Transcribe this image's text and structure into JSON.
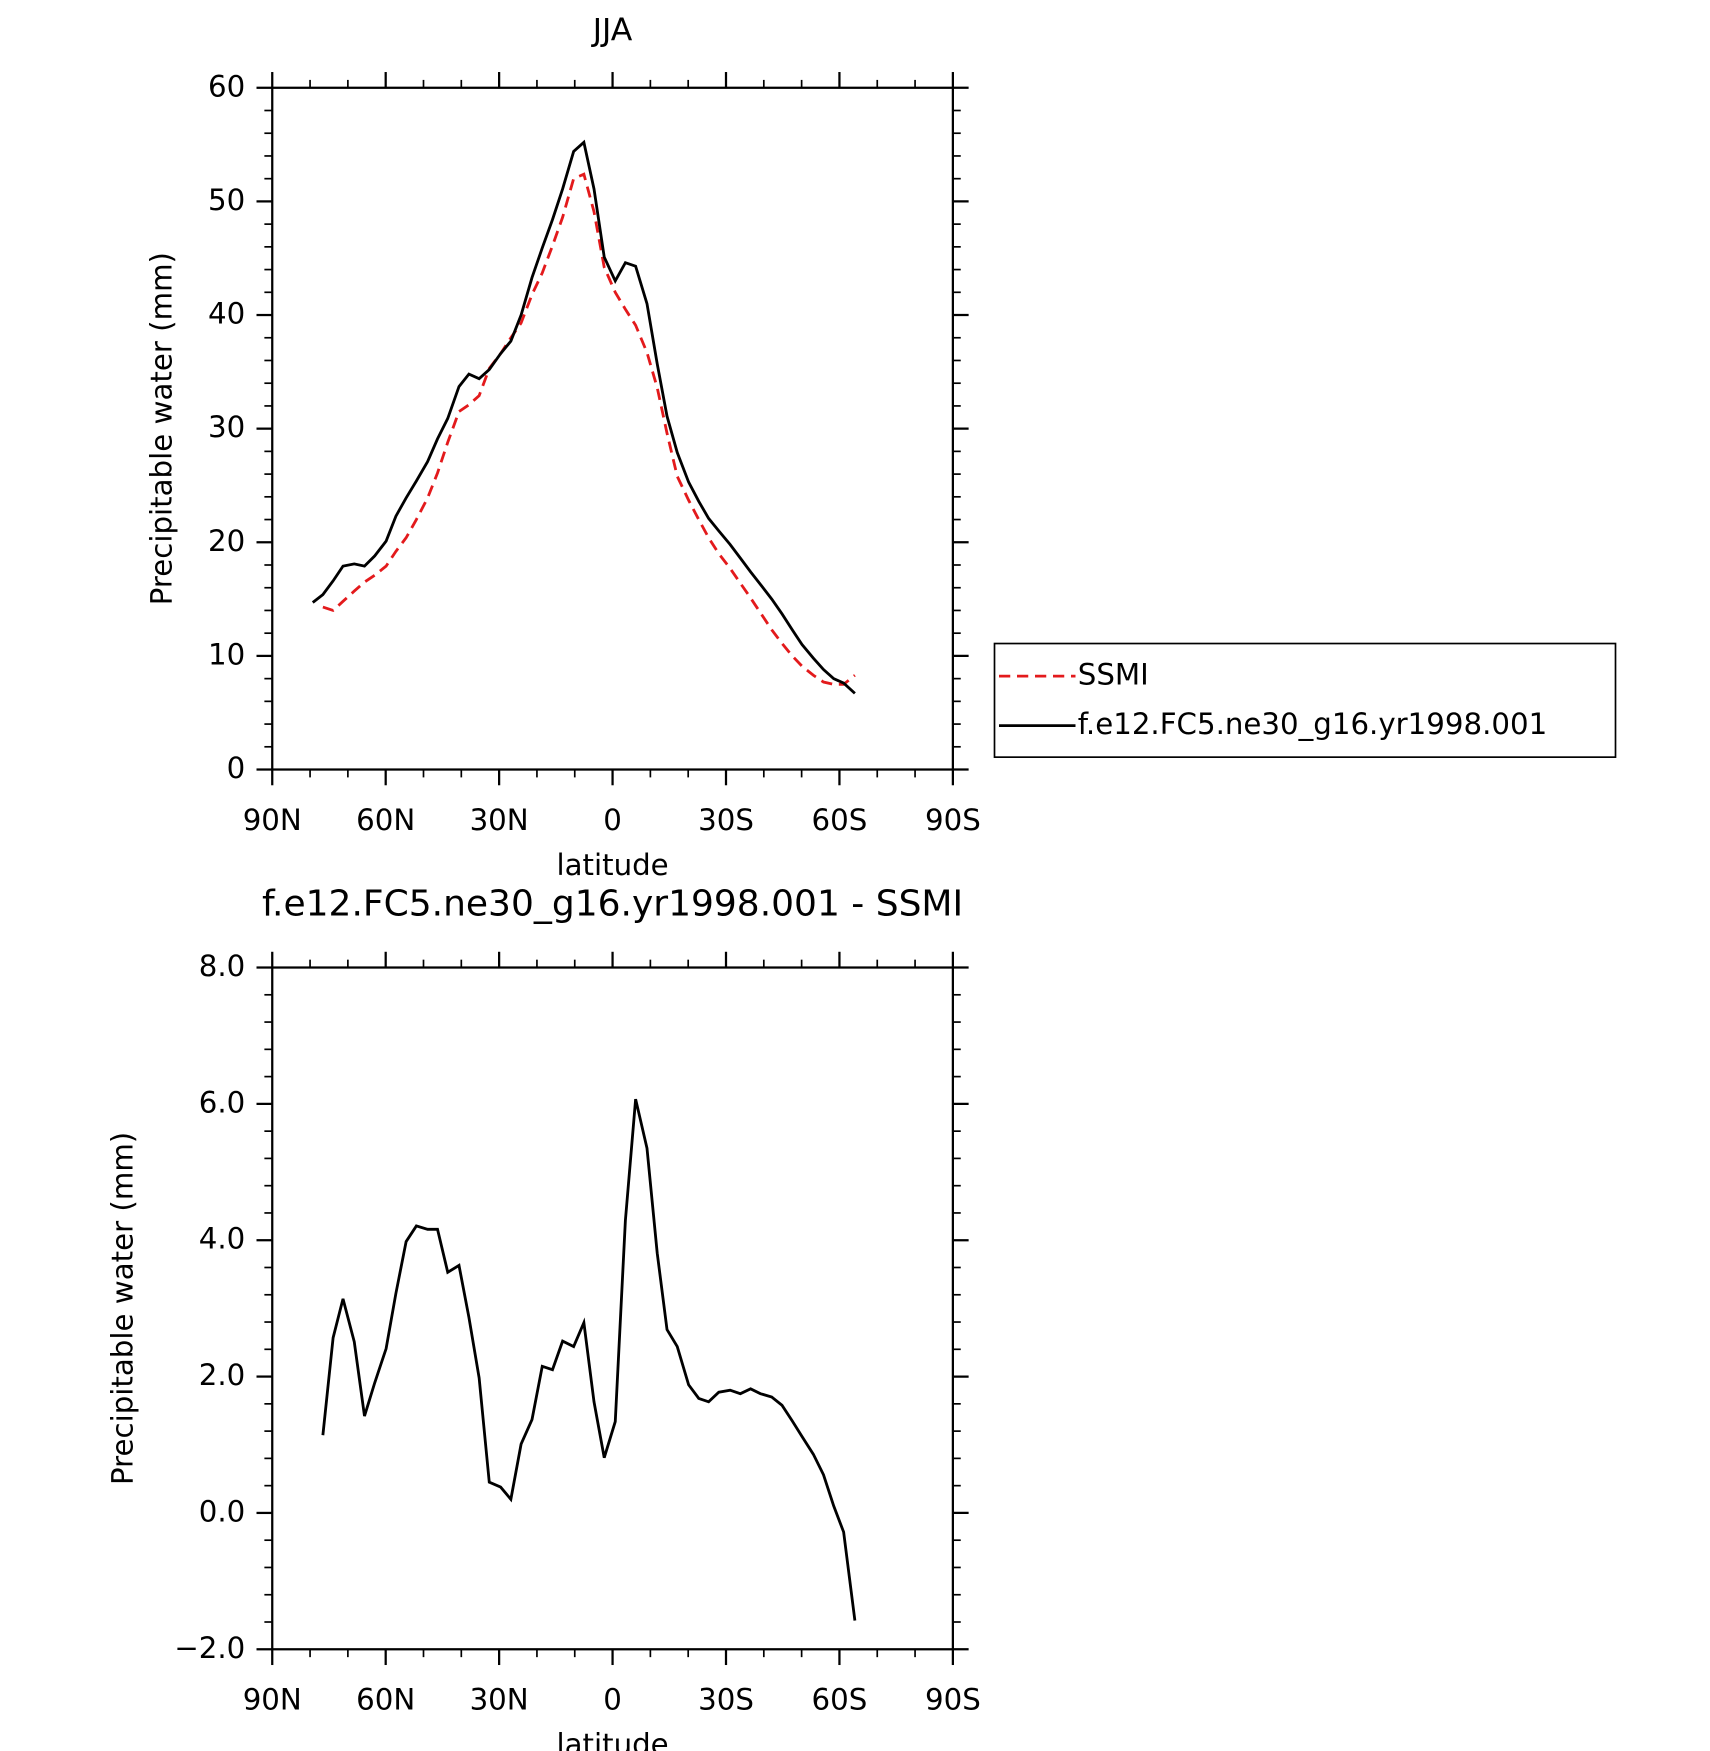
{
  "chart_data": [
    {
      "type": "line",
      "title": "JJA",
      "xlabel": "latitude",
      "ylabel": "Precipitable water (mm)",
      "x": [
        79.3,
        76.6,
        73.9,
        71.3,
        68.3,
        65.6,
        62.9,
        59.9,
        57.3,
        54.6,
        51.9,
        48.9,
        46.3,
        43.6,
        40.6,
        38.0,
        35.3,
        32.6,
        29.6,
        26.9,
        24.2,
        21.3,
        18.6,
        15.9,
        13.2,
        10.3,
        7.6,
        4.9,
        2.2,
        -0.7,
        -3.4,
        -6.1,
        -9.1,
        -11.8,
        -14.4,
        -17.1,
        -20.1,
        -22.8,
        -25.4,
        -28.1,
        -31.1,
        -33.8,
        -36.5,
        -39.1,
        -42.1,
        -44.8,
        -47.5,
        -50.1,
        -53.1,
        -55.8,
        -58.5,
        -61.1,
        -64.1
      ],
      "series": [
        {
          "name": "SSMI",
          "color": "#e31a1c",
          "line_style": "dashed",
          "values": [
            null,
            14.3,
            14.0,
            14.8,
            15.7,
            16.5,
            17.1,
            17.9,
            19.2,
            20.4,
            22.0,
            23.9,
            26.1,
            28.8,
            31.5,
            32.1,
            32.9,
            35.3,
            36.6,
            38.0,
            39.3,
            41.8,
            43.7,
            46.1,
            48.6,
            52.0,
            52.4,
            49.1,
            44.2,
            42.0,
            40.5,
            39.1,
            36.7,
            33.6,
            29.6,
            25.8,
            23.7,
            22.0,
            20.4,
            19.0,
            17.7,
            16.4,
            15.1,
            13.8,
            12.3,
            11.1,
            10.0,
            9.1,
            8.3,
            7.7,
            7.5,
            7.5,
            8.3
          ]
        },
        {
          "name": "f.e12.FC5.ne30_g16.yr1998.001",
          "color": "#000000",
          "line_style": "solid",
          "values": [
            14.7,
            15.4,
            16.6,
            17.9,
            18.1,
            17.9,
            18.8,
            20.1,
            22.3,
            23.9,
            25.4,
            27.1,
            29.1,
            30.9,
            33.7,
            34.8,
            34.4,
            35.2,
            36.6,
            37.7,
            40.0,
            43.3,
            45.9,
            48.4,
            51.1,
            54.4,
            55.2,
            51.1,
            45.1,
            43.0,
            44.6,
            44.3,
            41.0,
            35.7,
            31.1,
            27.9,
            25.3,
            23.6,
            22.1,
            21.0,
            19.8,
            18.6,
            17.4,
            16.3,
            15.0,
            13.7,
            12.3,
            11.0,
            9.8,
            8.8,
            8.0,
            7.6,
            6.7
          ]
        }
      ],
      "xlim": [
        90,
        -90
      ],
      "xticks": [
        {
          "value": 90,
          "label": "90N"
        },
        {
          "value": 60,
          "label": "60N"
        },
        {
          "value": 30,
          "label": "30N"
        },
        0,
        {
          "value": -30,
          "label": "30S"
        },
        {
          "value": -60,
          "label": "60S"
        },
        {
          "value": -90,
          "label": "90S"
        }
      ],
      "ylim": [
        0,
        60
      ],
      "yticks": [
        0,
        10,
        20,
        30,
        40,
        50,
        60
      ],
      "legend": "right"
    },
    {
      "type": "line",
      "title": "f.e12.FC5.ne30_g16.yr1998.001 - SSMI",
      "xlabel": "latitude",
      "ylabel": "Precipitable water (mm)",
      "x": [
        76.6,
        73.9,
        71.3,
        68.3,
        65.6,
        62.9,
        59.9,
        57.3,
        54.6,
        51.9,
        48.9,
        46.3,
        43.6,
        40.6,
        38.0,
        35.3,
        32.6,
        29.6,
        26.9,
        24.2,
        21.3,
        18.6,
        15.9,
        13.2,
        10.3,
        7.6,
        4.9,
        2.2,
        -0.7,
        -3.4,
        -6.1,
        -9.1,
        -11.8,
        -14.4,
        -17.1,
        -20.1,
        -22.8,
        -25.4,
        -28.1,
        -31.1,
        -33.8,
        -36.5,
        -39.1,
        -42.1,
        -44.8,
        -47.5,
        -50.1,
        -53.1,
        -55.8,
        -58.5,
        -61.1,
        -64.1
      ],
      "color": "#000000",
      "values": [
        1.14,
        2.57,
        3.14,
        2.51,
        1.42,
        1.91,
        2.41,
        3.22,
        3.98,
        4.21,
        4.16,
        4.16,
        3.53,
        3.63,
        2.87,
        1.98,
        0.45,
        0.38,
        0.2,
        1.01,
        1.37,
        2.15,
        2.1,
        2.52,
        2.44,
        2.79,
        1.63,
        0.81,
        1.34,
        4.29,
        6.07,
        5.35,
        3.81,
        2.69,
        2.44,
        1.88,
        1.68,
        1.63,
        1.77,
        1.8,
        1.75,
        1.82,
        1.75,
        1.7,
        1.58,
        1.35,
        1.12,
        0.86,
        0.56,
        0.1,
        -0.28,
        -1.58
      ],
      "xlim": [
        90,
        -90
      ],
      "xticks": [
        {
          "value": 90,
          "label": "90N"
        },
        {
          "value": 60,
          "label": "60N"
        },
        {
          "value": 30,
          "label": "30N"
        },
        0,
        {
          "value": -30,
          "label": "30S"
        },
        {
          "value": -60,
          "label": "60S"
        },
        {
          "value": -90,
          "label": "90S"
        }
      ],
      "ylim": [
        -2,
        8
      ],
      "yticks": [
        {
          "value": -2,
          "label": "−2.0"
        },
        {
          "value": 0,
          "label": "0.0"
        },
        {
          "value": 2,
          "label": "2.0"
        },
        {
          "value": 4,
          "label": "4.0"
        },
        {
          "value": 6,
          "label": "6.0"
        },
        {
          "value": 8,
          "label": "8.0"
        }
      ]
    }
  ]
}
